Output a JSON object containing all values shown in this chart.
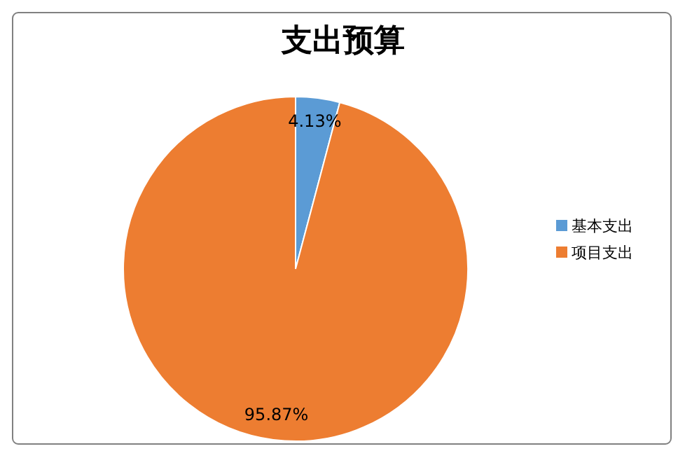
{
  "chart_data": {
    "type": "pie",
    "title": "支出预算",
    "categories": [
      "基本支出",
      "项目支出"
    ],
    "values": [
      4.13,
      95.87
    ],
    "colors": [
      "#5b9bd5",
      "#ed7d31"
    ],
    "value_labels": [
      "4.13%",
      "95.87%"
    ],
    "legend": "right"
  }
}
